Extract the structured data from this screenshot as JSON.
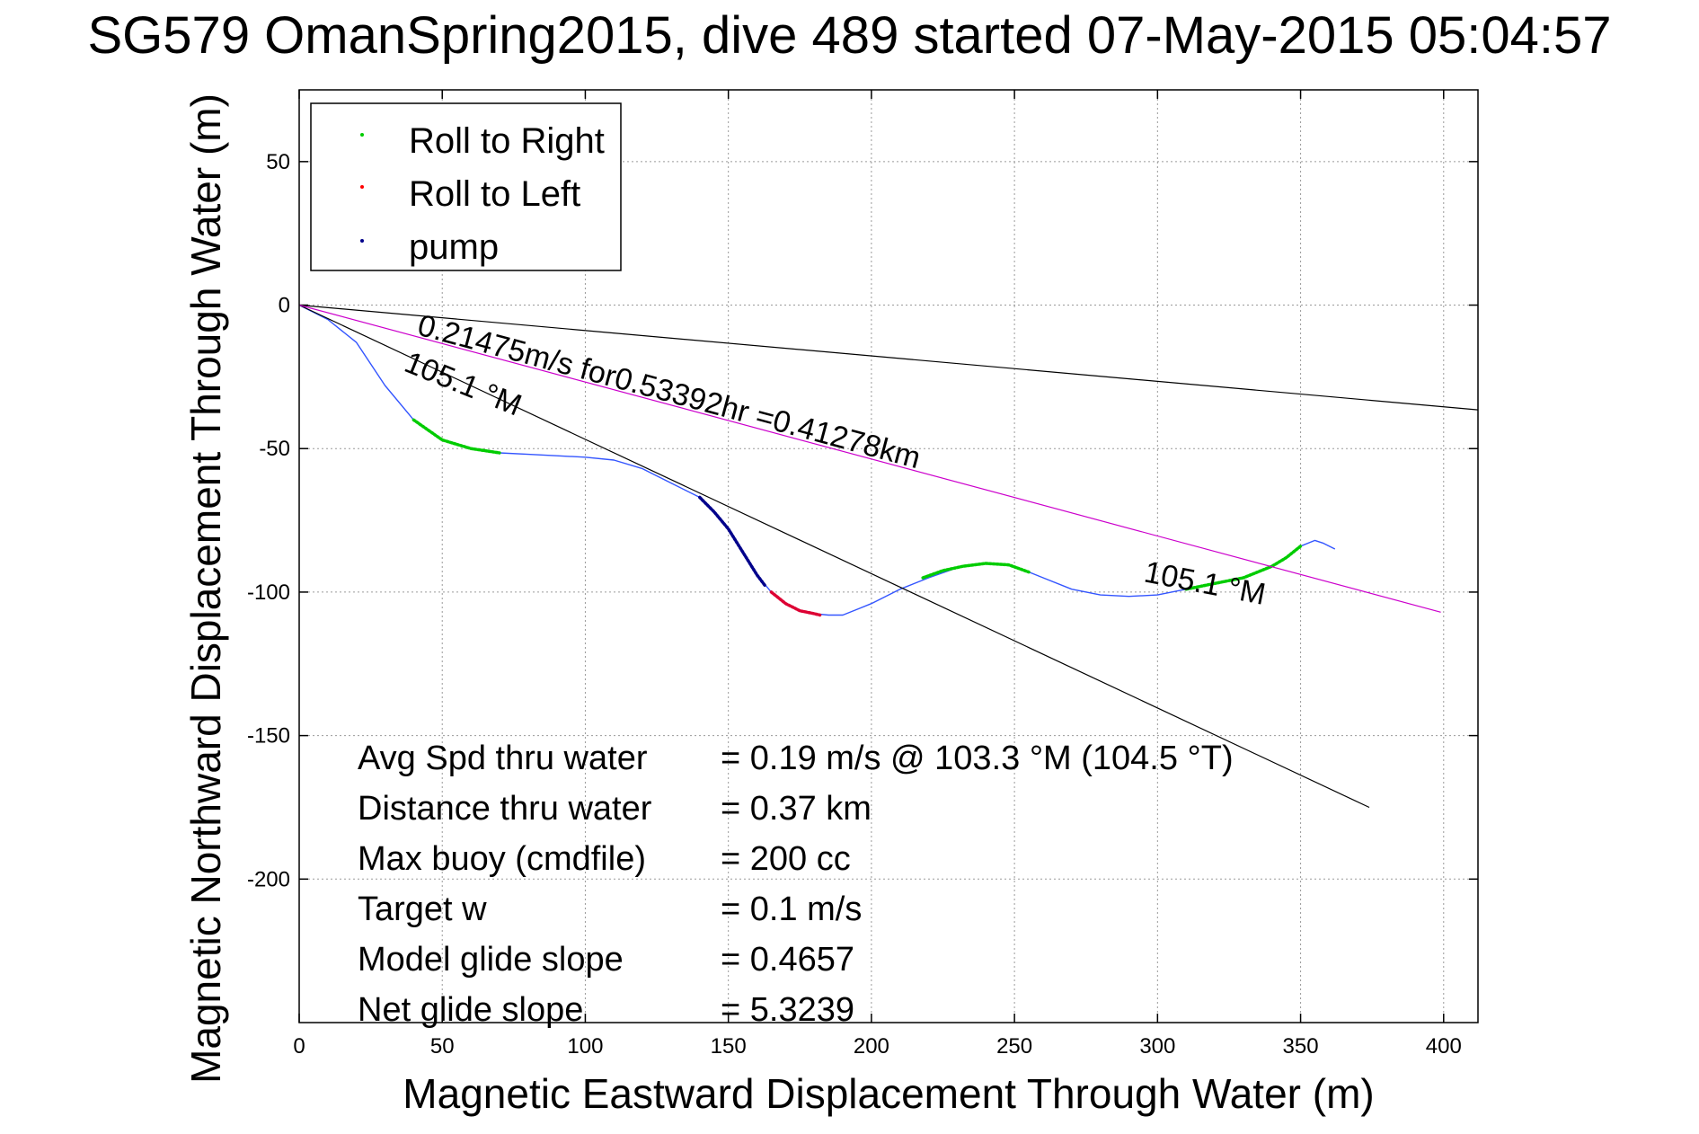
{
  "chart_data": {
    "type": "line",
    "title": "SG579 OmanSpring2015, dive 489 started 07-May-2015 05:04:57",
    "xlabel": "Magnetic Eastward Displacement Through Water (m)",
    "ylabel": "Magnetic Northward Displacement Through Water (m)",
    "xlim": [
      0,
      412
    ],
    "ylim": [
      -250,
      75
    ],
    "xticks": [
      0,
      50,
      100,
      150,
      200,
      250,
      300,
      350,
      400
    ],
    "yticks": [
      50,
      0,
      -50,
      -100,
      -150,
      -200
    ],
    "grid": true,
    "legend_position": "top-left",
    "legend": [
      {
        "label": "Roll to Right",
        "color": "#00cc00"
      },
      {
        "label": "Roll to Left",
        "color": "#ff0000"
      },
      {
        "label": "pump",
        "color": "#00008b"
      }
    ],
    "series": [
      {
        "name": "track",
        "color": "#3355ff",
        "x": [
          0,
          10,
          20,
          30,
          40,
          50,
          60,
          70,
          80,
          90,
          100,
          110,
          120,
          130,
          140,
          145,
          150,
          155,
          160,
          165,
          170,
          175,
          180,
          185,
          190,
          195,
          200,
          210,
          220,
          230,
          240,
          250,
          260,
          270,
          280,
          290,
          300,
          310,
          320,
          330,
          340,
          345,
          350,
          355,
          358,
          362
        ],
        "y": [
          0,
          -5,
          -13,
          -28,
          -40,
          -47,
          -50,
          -51.5,
          -52,
          -52.5,
          -53,
          -54,
          -57,
          -62,
          -67,
          -72,
          -78,
          -86,
          -94,
          -100,
          -104,
          -106.5,
          -107.5,
          -108,
          -108,
          -106,
          -104,
          -99,
          -95,
          -91.5,
          -90,
          -91,
          -95,
          -99,
          -101,
          -101.5,
          -101,
          -99,
          -97,
          -95,
          -91,
          -88,
          -84,
          -82,
          -83,
          -85
        ]
      },
      {
        "name": "Roll to Right",
        "color": "#00cc00",
        "segments": [
          {
            "x": [
              40,
              50,
              60,
              70
            ],
            "y": [
              -40,
              -47,
              -50,
              -51.5
            ]
          },
          {
            "x": [
              218,
              225,
              232,
              240,
              248,
              255
            ],
            "y": [
              -95,
              -92.5,
              -91,
              -90,
              -90.5,
              -93
            ]
          },
          {
            "x": [
              310,
              320,
              330,
              340,
              345,
              350
            ],
            "y": [
              -99,
              -97,
              -95,
              -91,
              -88,
              -84
            ]
          }
        ]
      },
      {
        "name": "Roll to Left",
        "color": "#dd0033",
        "segments": [
          {
            "x": [
              165,
              170,
              175,
              180,
              182
            ],
            "y": [
              -100,
              -104,
              -106.5,
              -107.5,
              -108
            ]
          }
        ]
      },
      {
        "name": "pump",
        "color": "#00008b",
        "segments": [
          {
            "x": [
              140,
              145,
              150,
              155,
              160,
              163
            ],
            "y": [
              -67,
              -72,
              -78,
              -86,
              -94,
              -98
            ]
          }
        ]
      },
      {
        "name": "heading line 1",
        "color": "#000000",
        "x": [
          0,
          412
        ],
        "y": [
          0,
          -36.5
        ]
      },
      {
        "name": "heading line 2",
        "color": "#000000",
        "x": [
          0,
          374
        ],
        "y": [
          0,
          -175
        ]
      },
      {
        "name": "mean heading line",
        "color": "#cc00cc",
        "x": [
          0,
          399
        ],
        "y": [
          0,
          -107
        ]
      }
    ],
    "annotations": {
      "speed_label": "0.21475m/s for0.53392hr =0.41278km",
      "heading_label_1": "105.1 °M",
      "heading_label_2": "105.1 °M"
    },
    "stats": [
      {
        "label": "Avg Spd thru water",
        "value": "=  0.19 m/s @ 103.3 °M (104.5 °T)"
      },
      {
        "label": "Distance thru water",
        "value": "=  0.37 km"
      },
      {
        "label": "Max buoy (cmdfile)",
        "value": "= 200 cc"
      },
      {
        "label": "Target w",
        "value": "= 0.1 m/s"
      },
      {
        "label": "Model glide slope",
        "value": "= 0.4657"
      },
      {
        "label": "Net glide slope",
        "value": "= 5.3239"
      }
    ]
  }
}
